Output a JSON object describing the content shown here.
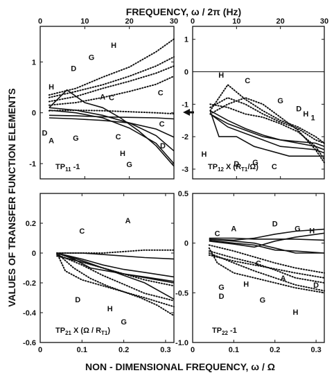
{
  "figure": {
    "top_axis_label": "FREQUENCY, ω / 2π  (Hz)",
    "bottom_axis_label": "NON - DIMENSIONAL   FREQUENCY,   ω / Ω",
    "left_axis_label": "VALUES  OF  TRANSFER  FUNCTION  ELEMENTS",
    "top_ticks": [
      "0",
      "10",
      "20",
      "30"
    ],
    "bottom_ticks": [
      "0",
      "0.1",
      "0.2",
      "0.3"
    ]
  },
  "chart_data": [
    {
      "type": "line",
      "title": "TP11-1",
      "title_main": "TP",
      "title_sub": "11",
      "title_suffix": " -1",
      "xlim": [
        0,
        30
      ],
      "ylim": [
        -1.3,
        1.7
      ],
      "yticks": [
        "1",
        "0",
        "-1"
      ],
      "x_units": "Hz",
      "series": [
        {
          "name": "A",
          "style": "dotted",
          "x": [
            2,
            8,
            14,
            20,
            26,
            30
          ],
          "y": [
            0.04,
            0.05,
            0.04,
            0.02,
            0.0,
            -0.02
          ]
        },
        {
          "name": "C",
          "style": "dotted",
          "x": [
            2,
            8,
            14,
            20,
            26,
            30
          ],
          "y": [
            0.15,
            0.2,
            0.3,
            0.42,
            0.56,
            0.72
          ]
        },
        {
          "name": "D",
          "style": "dotted",
          "x": [
            2,
            8,
            14,
            20,
            26,
            30
          ],
          "y": [
            0.22,
            0.32,
            0.48,
            0.62,
            0.78,
            0.92
          ]
        },
        {
          "name": "G",
          "style": "dotted",
          "x": [
            2,
            8,
            14,
            20,
            26,
            30
          ],
          "y": [
            0.3,
            0.42,
            0.55,
            0.72,
            0.92,
            1.1
          ]
        },
        {
          "name": "H",
          "style": "dotted",
          "x": [
            2,
            8,
            14,
            20,
            26,
            30
          ],
          "y": [
            0.35,
            0.48,
            0.7,
            0.9,
            1.2,
            1.45
          ]
        },
        {
          "name": "A",
          "style": "solid",
          "x": [
            2,
            8,
            14,
            20,
            26,
            30
          ],
          "y": [
            -0.05,
            -0.06,
            -0.08,
            -0.09,
            -0.1,
            -0.12
          ]
        },
        {
          "name": "C",
          "style": "solid",
          "x": [
            2,
            8,
            14,
            20,
            26,
            30
          ],
          "y": [
            -0.1,
            -0.12,
            -0.15,
            -0.2,
            -0.32,
            -0.48
          ]
        },
        {
          "name": "D",
          "style": "solid",
          "x": [
            2,
            8,
            14,
            20,
            26,
            30
          ],
          "y": [
            0.1,
            0.05,
            -0.05,
            -0.2,
            -0.45,
            -0.75
          ]
        },
        {
          "name": "G",
          "style": "solid",
          "x": [
            2,
            8,
            14,
            20,
            26,
            30
          ],
          "y": [
            0.05,
            0.0,
            -0.1,
            -0.3,
            -0.6,
            -1.0
          ]
        },
        {
          "name": "H",
          "style": "solid",
          "x": [
            2,
            6,
            10,
            14,
            18,
            22,
            26,
            30
          ],
          "y": [
            0.1,
            0.45,
            0.2,
            0.1,
            -0.1,
            -0.35,
            -0.65,
            -1.05
          ]
        }
      ],
      "annotations": [
        {
          "text": "H",
          "x": 16.5,
          "y": 1.28
        },
        {
          "text": "G",
          "x": 11.5,
          "y": 1.04
        },
        {
          "text": "D",
          "x": 7.5,
          "y": 0.82
        },
        {
          "text": "C",
          "x": 27,
          "y": 0.34
        },
        {
          "text": "H",
          "x": 2.5,
          "y": 0.46
        },
        {
          "text": "A",
          "x": 14,
          "y": 0.26
        },
        {
          "text": "C",
          "x": 16,
          "y": 0.25
        },
        {
          "text": "D",
          "x": 1,
          "y": -0.45
        },
        {
          "text": "A",
          "x": 2.5,
          "y": -0.6
        },
        {
          "text": "G",
          "x": 8,
          "y": -0.55
        },
        {
          "text": "C",
          "x": 17.5,
          "y": -0.52
        },
        {
          "text": "C",
          "x": 27.3,
          "y": -0.27
        },
        {
          "text": "H",
          "x": 18.5,
          "y": -0.85
        },
        {
          "text": "D",
          "x": 27.5,
          "y": -0.7
        },
        {
          "text": "G",
          "x": 20,
          "y": -1.07
        }
      ]
    },
    {
      "type": "line",
      "title": "TP12 X (RT1/Ω)",
      "title_main": "TP",
      "title_sub": "12",
      "title_suffix": " X (R",
      "title_sub2": "T1",
      "title_end": "/Ω)",
      "xlim": [
        0,
        30
      ],
      "ylim": [
        -3.3,
        1.4
      ],
      "yticks": [
        "1",
        "0",
        "-1",
        "-2",
        "-3"
      ],
      "x_units": "Hz",
      "series": [
        {
          "name": "D",
          "style": "dotted",
          "x": [
            4,
            8,
            12,
            16,
            20,
            24,
            28,
            30
          ],
          "y": [
            -1.2,
            -0.4,
            -0.85,
            -1.2,
            -1.5,
            -1.7,
            -2.0,
            -2.2
          ]
        },
        {
          "name": "C",
          "style": "dotted",
          "x": [
            4,
            8,
            12,
            16,
            20,
            24,
            28,
            30
          ],
          "y": [
            -1.1,
            -0.8,
            -1.0,
            -1.3,
            -1.55,
            -1.75,
            -2.1,
            -2.2
          ]
        },
        {
          "name": "G",
          "style": "dotted",
          "x": [
            4,
            8,
            12,
            16,
            20,
            24,
            28,
            30
          ],
          "y": [
            -1.0,
            -1.1,
            -1.3,
            -1.4,
            -1.6,
            -1.85,
            -2.3,
            -2.7
          ]
        },
        {
          "name": "H",
          "style": "dotted",
          "x": [
            4,
            8,
            12,
            16,
            20,
            24,
            28,
            30
          ],
          "y": [
            -1.3,
            -1.0,
            -0.8,
            -1.0,
            -1.4,
            -1.8,
            -2.4,
            -2.8
          ]
        },
        {
          "name": "D",
          "style": "solid",
          "x": [
            4,
            8,
            12,
            16,
            20,
            24,
            28,
            30
          ],
          "y": [
            -1.3,
            -1.6,
            -1.8,
            -2.0,
            -2.1,
            -2.15,
            -2.2,
            -2.3
          ]
        },
        {
          "name": "C",
          "style": "solid",
          "x": [
            4,
            8,
            12,
            16,
            20,
            24,
            28,
            30
          ],
          "y": [
            -1.2,
            -1.5,
            -1.75,
            -1.95,
            -2.1,
            -2.2,
            -2.3,
            -2.4
          ]
        },
        {
          "name": "G",
          "style": "solid",
          "x": [
            4,
            8,
            12,
            16,
            20,
            24,
            28,
            30
          ],
          "y": [
            -1.3,
            -1.7,
            -1.9,
            -2.1,
            -2.3,
            -2.35,
            -2.4,
            -2.5
          ]
        },
        {
          "name": "H",
          "style": "solid",
          "x": [
            4,
            6,
            10,
            14,
            18,
            22,
            26,
            30
          ],
          "y": [
            -1.2,
            -2.0,
            -2.0,
            -2.3,
            -2.45,
            -2.6,
            -2.6,
            -2.6
          ]
        }
      ],
      "annotations": [
        {
          "text": "H",
          "x": 6.5,
          "y": -0.18
        },
        {
          "text": "C",
          "x": 12.5,
          "y": -0.35
        },
        {
          "text": "G",
          "x": 20,
          "y": -0.97
        },
        {
          "text": "D",
          "x": 24.2,
          "y": -1.22
        },
        {
          "text": "H",
          "x": 25.8,
          "y": -1.38
        },
        {
          "text": "1",
          "x": 27.4,
          "y": -1.5
        },
        {
          "text": "H",
          "x": 2.6,
          "y": -2.62
        },
        {
          "text": "D",
          "x": 10,
          "y": -2.92
        },
        {
          "text": "G",
          "x": 14.3,
          "y": -2.87
        },
        {
          "text": "C",
          "x": 18.6,
          "y": -3.0
        }
      ]
    },
    {
      "type": "line",
      "title": "TP21 X (Ω/RT1)",
      "title_main": "TP",
      "title_sub": "21",
      "title_suffix": " X (Ω / R",
      "title_sub2": "T1",
      "title_end": ")",
      "xlim": [
        0,
        0.32
      ],
      "ylim": [
        -0.6,
        0.4
      ],
      "yticks": [
        "0.2",
        "0",
        "-0.2",
        "-0.4",
        "-0.6"
      ],
      "x_units": "ω/Ω",
      "series": [
        {
          "name": "A",
          "style": "dotted",
          "x": [
            0.04,
            0.1,
            0.15,
            0.2,
            0.25,
            0.32
          ],
          "y": [
            0.0,
            0.0,
            0.0,
            0.01,
            0.02,
            0.02
          ]
        },
        {
          "name": "C",
          "style": "dotted",
          "x": [
            0.04,
            0.1,
            0.15,
            0.2,
            0.25,
            0.32
          ],
          "y": [
            -0.02,
            -0.06,
            -0.1,
            -0.14,
            -0.18,
            -0.22
          ]
        },
        {
          "name": "D",
          "style": "dotted",
          "x": [
            0.04,
            0.06,
            0.1,
            0.15,
            0.2,
            0.25,
            0.32
          ],
          "y": [
            0.0,
            -0.12,
            -0.18,
            -0.22,
            -0.26,
            -0.3,
            -0.36
          ]
        },
        {
          "name": "G",
          "style": "dotted",
          "x": [
            0.04,
            0.08,
            0.12,
            0.16,
            0.2,
            0.24,
            0.28,
            0.32
          ],
          "y": [
            0.0,
            -0.1,
            -0.17,
            -0.22,
            -0.26,
            -0.3,
            -0.35,
            -0.42
          ]
        },
        {
          "name": "H",
          "style": "dotted",
          "x": [
            0.04,
            0.1,
            0.15,
            0.2,
            0.25,
            0.32
          ],
          "y": [
            -0.01,
            -0.08,
            -0.15,
            -0.21,
            -0.27,
            -0.32
          ]
        },
        {
          "name": "A",
          "style": "solid",
          "x": [
            0.04,
            0.1,
            0.15,
            0.2,
            0.25,
            0.32
          ],
          "y": [
            0.0,
            0.0,
            -0.01,
            -0.02,
            -0.03,
            -0.04
          ]
        },
        {
          "name": "C",
          "style": "solid",
          "x": [
            0.04,
            0.1,
            0.15,
            0.2,
            0.25,
            0.32
          ],
          "y": [
            0.0,
            -0.04,
            -0.08,
            -0.11,
            -0.13,
            -0.16
          ]
        },
        {
          "name": "D",
          "style": "solid",
          "x": [
            0.04,
            0.08,
            0.12,
            0.16,
            0.2,
            0.24,
            0.28,
            0.32
          ],
          "y": [
            0.0,
            -0.04,
            -0.1,
            -0.12,
            -0.14,
            -0.16,
            -0.18,
            -0.2
          ]
        },
        {
          "name": "H",
          "style": "solid",
          "x": [
            0.04,
            0.1,
            0.15,
            0.2,
            0.25,
            0.32
          ],
          "y": [
            -0.02,
            -0.06,
            -0.1,
            -0.14,
            -0.16,
            -0.19
          ]
        },
        {
          "name": "G",
          "style": "solid",
          "x": [
            0.04,
            0.1,
            0.15,
            0.2,
            0.25,
            0.32
          ],
          "y": [
            0.0,
            -0.05,
            -0.1,
            -0.15,
            -0.2,
            -0.31
          ]
        }
      ],
      "annotations": [
        {
          "text": "A",
          "x": 0.21,
          "y": 0.2
        },
        {
          "text": "C",
          "x": 0.1,
          "y": 0.13
        },
        {
          "text": "D",
          "x": 0.09,
          "y": -0.33
        },
        {
          "text": "H",
          "x": 0.167,
          "y": -0.39
        },
        {
          "text": "G",
          "x": 0.2,
          "y": -0.48
        }
      ]
    },
    {
      "type": "line",
      "title": "TP22-1",
      "title_main": "TP",
      "title_sub": "22",
      "title_suffix": " -1",
      "xlim": [
        0,
        0.32
      ],
      "ylim": [
        -1.0,
        0.5
      ],
      "yticks": [
        "0.5",
        "0",
        "-0.5",
        "-1.0"
      ],
      "x_units": "ω/Ω",
      "series": [
        {
          "name": "A",
          "style": "solid",
          "x": [
            0.04,
            0.1,
            0.15,
            0.2,
            0.25,
            0.32
          ],
          "y": [
            0.05,
            0.05,
            0.04,
            0.04,
            0.04,
            0.03
          ]
        },
        {
          "name": "C",
          "style": "solid",
          "x": [
            0.04,
            0.1,
            0.15,
            0.2,
            0.25,
            0.32
          ],
          "y": [
            0.04,
            0.02,
            0.0,
            -0.05,
            -0.1,
            -0.1
          ]
        },
        {
          "name": "D",
          "style": "solid",
          "x": [
            0.04,
            0.1,
            0.15,
            0.2,
            0.25,
            0.32
          ],
          "y": [
            0.03,
            0.0,
            -0.02,
            -0.07,
            -0.08,
            -0.1
          ]
        },
        {
          "name": "G",
          "style": "solid",
          "x": [
            0.04,
            0.1,
            0.15,
            0.2,
            0.25,
            0.32
          ],
          "y": [
            0.02,
            -0.01,
            -0.04,
            0.02,
            0.06,
            0.1
          ]
        },
        {
          "name": "H",
          "style": "solid",
          "x": [
            0.04,
            0.1,
            0.15,
            0.2,
            0.25,
            0.32
          ],
          "y": [
            0.04,
            0.03,
            0.05,
            0.09,
            0.12,
            0.14
          ]
        },
        {
          "name": "C",
          "style": "dotted",
          "x": [
            0.04,
            0.1,
            0.15,
            0.2,
            0.25,
            0.32
          ],
          "y": [
            -0.02,
            -0.08,
            -0.14,
            -0.2,
            -0.25,
            -0.3
          ]
        },
        {
          "name": "D",
          "style": "dotted",
          "x": [
            0.04,
            0.06,
            0.1,
            0.15,
            0.2,
            0.25,
            0.32
          ],
          "y": [
            -0.05,
            -0.2,
            -0.3,
            -0.35,
            -0.4,
            -0.45,
            -0.5
          ]
        },
        {
          "name": "G",
          "style": "dotted",
          "x": [
            0.04,
            0.1,
            0.15,
            0.2,
            0.25,
            0.32
          ],
          "y": [
            -0.1,
            -0.2,
            -0.28,
            -0.35,
            -0.42,
            -0.48
          ]
        },
        {
          "name": "H",
          "style": "dotted",
          "x": [
            0.04,
            0.1,
            0.15,
            0.2,
            0.25,
            0.32
          ],
          "y": [
            -0.08,
            -0.15,
            -0.2,
            -0.27,
            -0.35,
            -0.4
          ]
        },
        {
          "name": "A",
          "style": "dotted",
          "x": [
            0.04,
            0.1,
            0.15,
            0.2,
            0.25,
            0.32
          ],
          "y": [
            -0.12,
            -0.18,
            -0.22,
            -0.26,
            -0.3,
            -0.35
          ]
        }
      ],
      "annotations": [
        {
          "text": "C",
          "x": 0.06,
          "y": 0.07
        },
        {
          "text": "A",
          "x": 0.1,
          "y": 0.12
        },
        {
          "text": "D",
          "x": 0.2,
          "y": 0.17
        },
        {
          "text": "G",
          "x": 0.255,
          "y": 0.12
        },
        {
          "text": "H",
          "x": 0.29,
          "y": 0.1
        },
        {
          "text": "C",
          "x": 0.16,
          "y": -0.23
        },
        {
          "text": "A",
          "x": 0.22,
          "y": -0.38
        },
        {
          "text": "D",
          "x": 0.3,
          "y": -0.45
        },
        {
          "text": "G",
          "x": 0.07,
          "y": -0.47
        },
        {
          "text": "H",
          "x": 0.13,
          "y": -0.44
        },
        {
          "text": "D",
          "x": 0.07,
          "y": -0.56
        },
        {
          "text": "G",
          "x": 0.17,
          "y": -0.6
        },
        {
          "text": "H",
          "x": 0.25,
          "y": -0.72
        }
      ]
    }
  ]
}
